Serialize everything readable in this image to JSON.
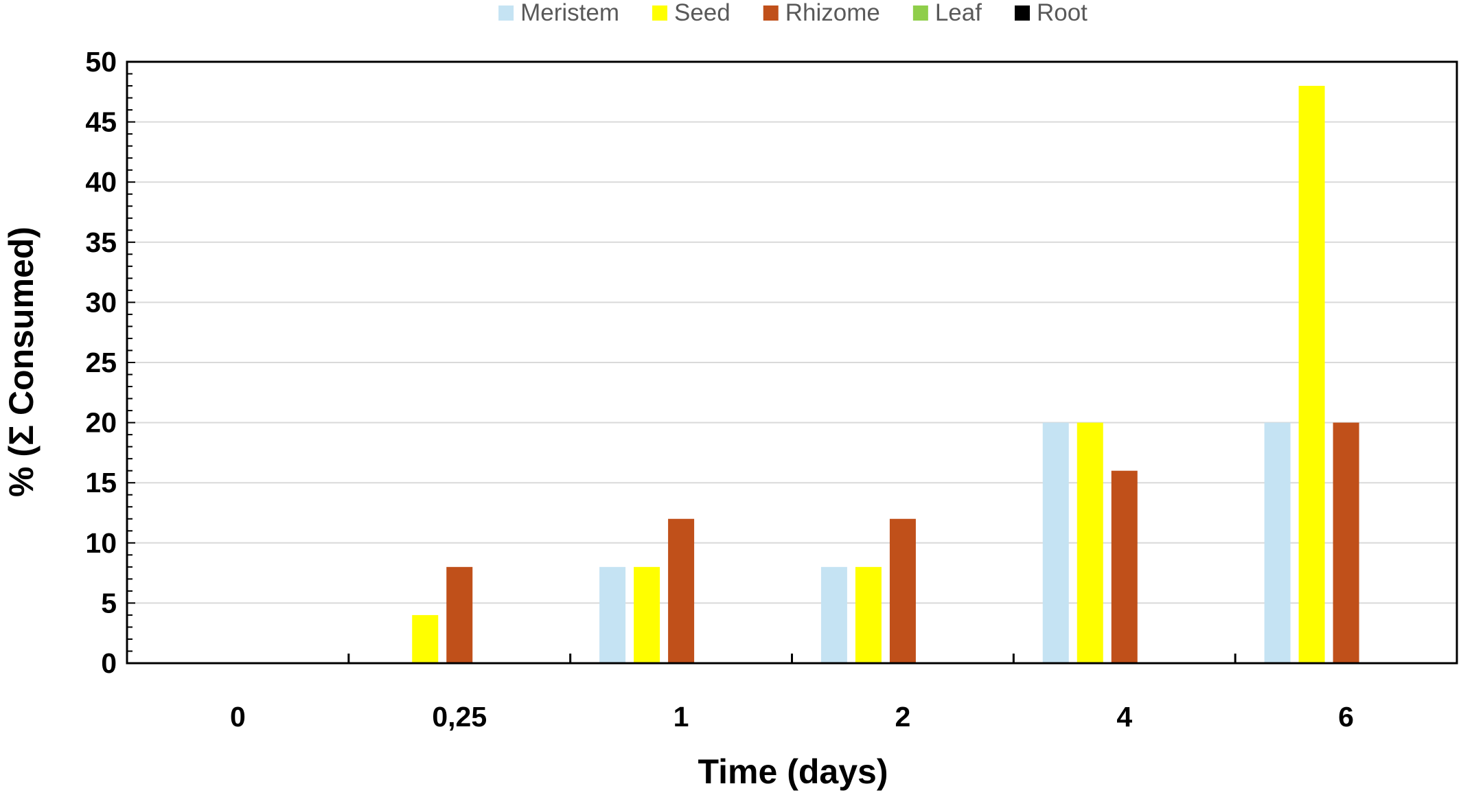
{
  "chart_data": {
    "type": "bar",
    "title": "",
    "xlabel": "Time (days)",
    "ylabel": "% (Σ Consumed)",
    "categories": [
      "0",
      "0,25",
      "1",
      "2",
      "4",
      "6"
    ],
    "series": [
      {
        "name": "Meristem",
        "color": "#c5e3f3",
        "values": [
          0,
          0,
          8,
          8,
          20,
          20
        ]
      },
      {
        "name": "Seed",
        "color": "#ffff00",
        "values": [
          0,
          4,
          8,
          8,
          20,
          48
        ]
      },
      {
        "name": "Rhizome",
        "color": "#c0501a",
        "values": [
          0,
          8,
          12,
          12,
          16,
          20
        ]
      },
      {
        "name": "Leaf",
        "color": "#8fce4a",
        "values": [
          0,
          0,
          0,
          0,
          0,
          0
        ]
      },
      {
        "name": "Root",
        "color": "#000000",
        "values": [
          0,
          0,
          0,
          0,
          0,
          0
        ]
      }
    ],
    "ylim": [
      0,
      50
    ],
    "yticks": [
      0,
      5,
      10,
      15,
      20,
      25,
      30,
      35,
      40,
      45,
      50
    ],
    "grid": true,
    "legend_position": "top-center"
  }
}
